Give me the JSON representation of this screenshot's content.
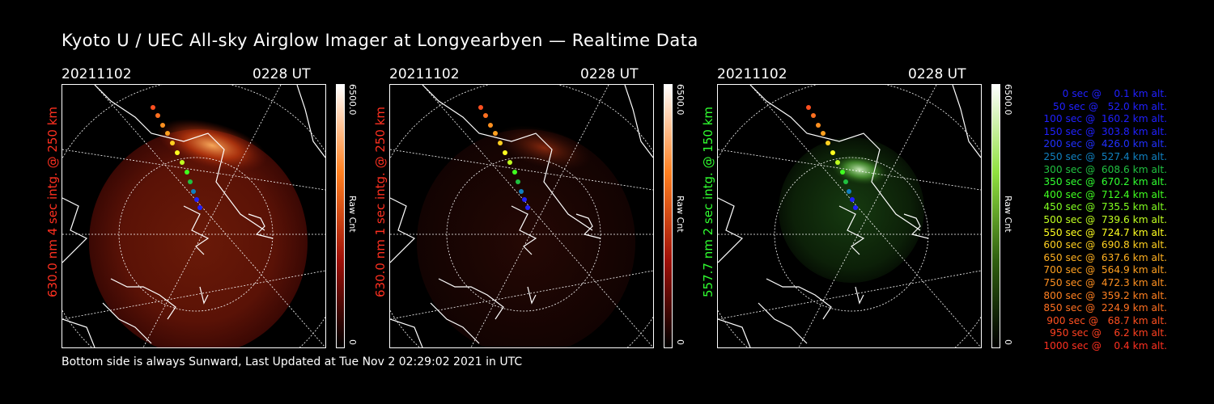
{
  "title": "Kyoto U / UEC All-sky Airglow Imager at Longyearbyen — Realtime Data",
  "panels": [
    {
      "date": "20211102",
      "time": "0228 UT",
      "label": "630.0 nm 4 sec intg. @ 250 km",
      "label_color": "#ff3020",
      "colorbar_max": "6500.0",
      "colorbar_min": "0",
      "colorbar_unit": "Raw Cnt"
    },
    {
      "date": "20211102",
      "time": "0228 UT",
      "label": "630.0 nm 1 sec intg. @ 250 km",
      "label_color": "#ff3020",
      "colorbar_max": "6500.0",
      "colorbar_min": "0",
      "colorbar_unit": "Raw Cnt"
    },
    {
      "date": "20211102",
      "time": "0228 UT",
      "label": "557.7 nm 2 sec intg. @ 150 km",
      "label_color": "#30ff30",
      "colorbar_max": "6500.0",
      "colorbar_min": "0",
      "colorbar_unit": "Raw Cnt"
    }
  ],
  "legend": [
    {
      "text": "   0 sec @    0.1 km alt.",
      "color": "#2020ff"
    },
    {
      "text": "  50 sec @   52.0 km alt.",
      "color": "#2020ff"
    },
    {
      "text": " 100 sec @  160.2 km alt.",
      "color": "#2020ff"
    },
    {
      "text": " 150 sec @  303.8 km alt.",
      "color": "#2020ff"
    },
    {
      "text": " 200 sec @  426.0 km alt.",
      "color": "#2030ff"
    },
    {
      "text": " 250 sec @  527.4 km alt.",
      "color": "#1080c0"
    },
    {
      "text": " 300 sec @  608.6 km alt.",
      "color": "#20c040"
    },
    {
      "text": " 350 sec @  670.2 km alt.",
      "color": "#30ff30"
    },
    {
      "text": " 400 sec @  712.4 km alt.",
      "color": "#40ff20"
    },
    {
      "text": " 450 sec @  735.5 km alt.",
      "color": "#80ff20"
    },
    {
      "text": " 500 sec @  739.6 km alt.",
      "color": "#c0ff20"
    },
    {
      "text": " 550 sec @  724.7 km alt.",
      "color": "#ffff20"
    },
    {
      "text": " 600 sec @  690.8 km alt.",
      "color": "#ffd020"
    },
    {
      "text": " 650 sec @  637.6 km alt.",
      "color": "#ffb020"
    },
    {
      "text": " 700 sec @  564.9 km alt.",
      "color": "#ffa020"
    },
    {
      "text": " 750 sec @  472.3 km alt.",
      "color": "#ff9020"
    },
    {
      "text": " 800 sec @  359.2 km alt.",
      "color": "#ff8020"
    },
    {
      "text": " 850 sec @  224.9 km alt.",
      "color": "#ff7020"
    },
    {
      "text": " 900 sec @   68.7 km alt.",
      "color": "#ff5020"
    },
    {
      "text": " 950 sec @    6.2 km alt.",
      "color": "#ff4020"
    },
    {
      "text": "1000 sec @    0.4 km alt.",
      "color": "#ff3020"
    }
  ],
  "footer": "Bottom side is always Sunward, Last Updated at Tue Nov  2 02:29:02 2021 in UTC"
}
